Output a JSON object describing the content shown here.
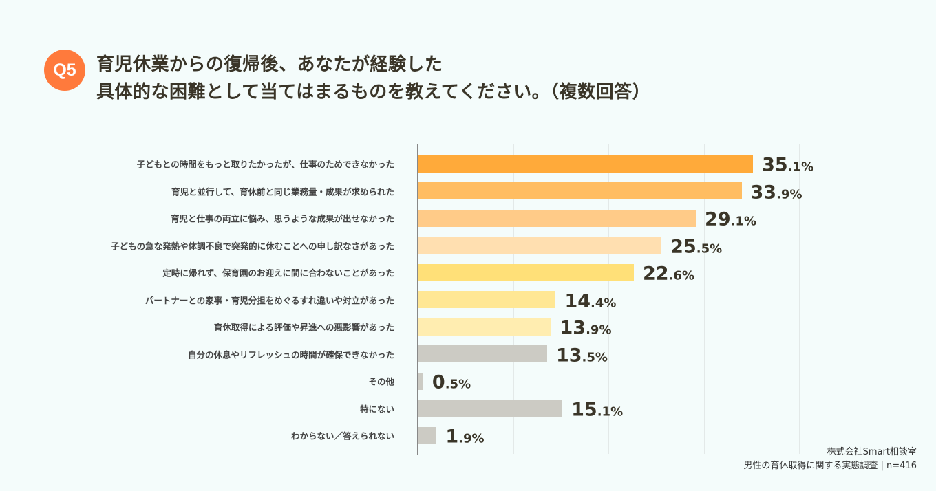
{
  "badge": "Q5",
  "title": {
    "line1": "育児休業からの復帰後、あなたが経験した",
    "line2": "具体的な困難として当てはまるものを教えてください。（複数回答）"
  },
  "source": {
    "line1": "株式会社Smart相談室",
    "line2": "男性の育休取得に関する実態調査 | n=416"
  },
  "chart_data": {
    "type": "bar",
    "orientation": "horizontal",
    "unit": "%",
    "xlim": [
      0,
      40
    ],
    "grid": true,
    "categories": [
      "子どもとの時間をもっと取りたかったが、仕事のためできなかった",
      "育児と並行して、育休前と同じ業務量・成果が求められた",
      "育児と仕事の両立に悩み、思うような成果が出せなかった",
      "子どもの急な発熱や体調不良で突発的に休むことへの申し訳なさがあった",
      "定時に帰れず、保育園のお迎えに間に合わないことがあった",
      "パートナーとの家事・育児分担をめぐるすれ違いや対立があった",
      "育休取得による評価や昇進への悪影響があった",
      "自分の休息やリフレッシュの時間が確保できなかった",
      "その他",
      "特にない",
      "わからない／答えられない"
    ],
    "values": [
      35.1,
      33.9,
      29.1,
      25.5,
      22.6,
      14.4,
      13.9,
      13.5,
      0.5,
      15.1,
      1.9
    ],
    "colors": [
      "#FFAA3A",
      "#FFBD62",
      "#FFCB88",
      "#FFDFB0",
      "#FFE078",
      "#FFE794",
      "#FFEDB0",
      "#CCCBC4",
      "#CCCBC4",
      "#CCCBC4",
      "#CCCBC4"
    ]
  }
}
